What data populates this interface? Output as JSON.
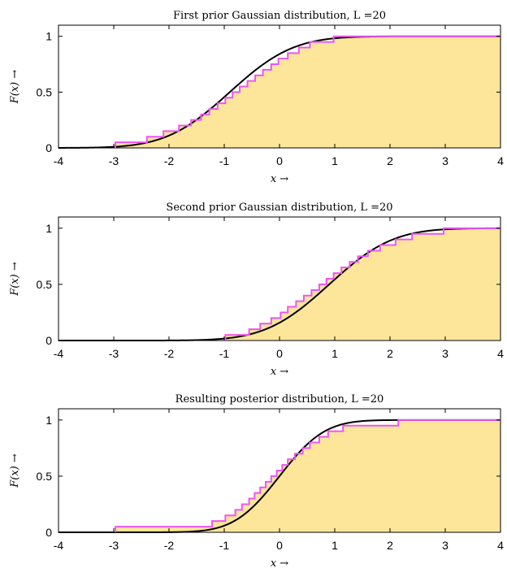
{
  "colors": {
    "fill": "#fde69a",
    "cdf": "#000000",
    "empirical": "#ee55ee",
    "axis": "#000000"
  },
  "chart_data": [
    {
      "type": "line",
      "title": "First prior Gaussian distribution, L =20",
      "xlabel": "x →",
      "ylabel": "F(x) →",
      "xlim": [
        -4,
        4
      ],
      "ylim": [
        0,
        1.1
      ],
      "xticks": [
        "-4",
        "-3",
        "-2",
        "-1",
        "0",
        "1",
        "2",
        "3",
        "4"
      ],
      "yticks": [
        "0",
        "0.5",
        "1"
      ],
      "series": [
        {
          "kind": "normal-cdf",
          "mu": -0.9,
          "sigma": 0.9
        },
        {
          "kind": "empirical-cdf",
          "samples": [
            -2.97,
            -2.4,
            -2.1,
            -1.82,
            -1.6,
            -1.42,
            -1.27,
            -1.12,
            -0.98,
            -0.85,
            -0.72,
            -0.58,
            -0.44,
            -0.3,
            -0.15,
            -0.02,
            0.15,
            0.35,
            0.55,
            0.98
          ]
        }
      ]
    },
    {
      "type": "line",
      "title": "Second prior Gaussian distribution, L =20",
      "xlabel": "x →",
      "ylabel": "F(x) →",
      "xlim": [
        -4,
        4
      ],
      "ylim": [
        0,
        1.1
      ],
      "xticks": [
        "-4",
        "-3",
        "-2",
        "-1",
        "0",
        "1",
        "2",
        "3",
        "4"
      ],
      "yticks": [
        "0",
        "0.5",
        "1"
      ],
      "series": [
        {
          "kind": "normal-cdf",
          "mu": 0.9,
          "sigma": 0.9
        },
        {
          "kind": "empirical-cdf",
          "samples": [
            -0.98,
            -0.55,
            -0.35,
            -0.15,
            0.02,
            0.15,
            0.3,
            0.44,
            0.58,
            0.72,
            0.85,
            0.98,
            1.12,
            1.27,
            1.42,
            1.6,
            1.82,
            2.1,
            2.4,
            2.97
          ]
        }
      ]
    },
    {
      "type": "line",
      "title": "Resulting posterior distribution, L =20",
      "xlabel": "x →",
      "ylabel": "F(x) →",
      "xlim": [
        -4,
        4
      ],
      "ylim": [
        0,
        1.1
      ],
      "xticks": [
        "-4",
        "-3",
        "-2",
        "-1",
        "0",
        "1",
        "2",
        "3",
        "4"
      ],
      "yticks": [
        "0",
        "0.5",
        "1"
      ],
      "series": [
        {
          "kind": "normal-cdf",
          "mu": 0.0,
          "sigma": 0.64
        },
        {
          "kind": "empirical-cdf",
          "samples": [
            -2.97,
            -1.22,
            -0.98,
            -0.8,
            -0.68,
            -0.55,
            -0.45,
            -0.35,
            -0.25,
            -0.15,
            -0.05,
            0.05,
            0.15,
            0.28,
            0.42,
            0.55,
            0.72,
            0.88,
            1.15,
            2.15
          ]
        }
      ]
    }
  ]
}
